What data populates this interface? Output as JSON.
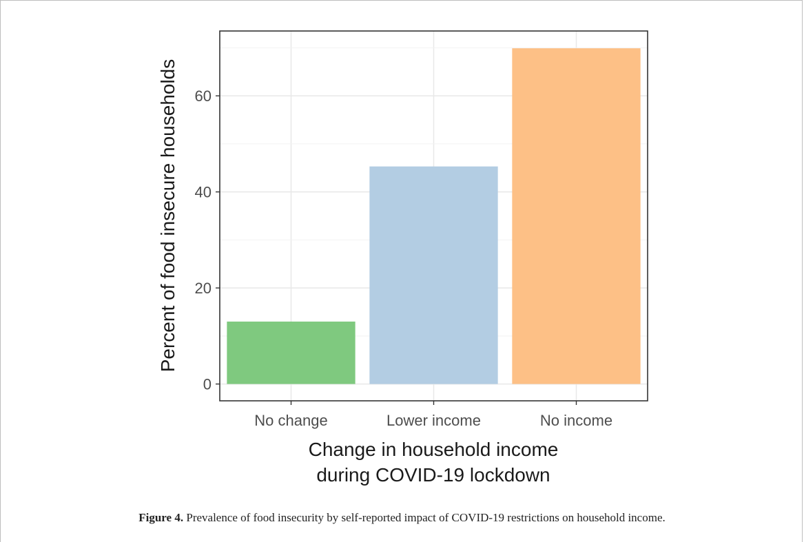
{
  "chart_data": {
    "type": "bar",
    "categories": [
      "No change",
      "Lower income",
      "No income"
    ],
    "values": [
      13,
      45.3,
      69.9
    ],
    "colors": [
      "#7fc97f",
      "#b3cde3",
      "#fdc086"
    ],
    "ylabel": "Percent of food insecure households",
    "xlabel_lines": [
      "Change in household income",
      "during COVID-19 lockdown"
    ],
    "ylim": [
      -3.5,
      73.5
    ],
    "yticks": [
      0,
      20,
      40,
      60
    ],
    "grid": true
  },
  "caption": {
    "label": "Figure 4.",
    "text": " Prevalence of food insecurity by self-reported impact of COVID-19 restrictions on household income."
  }
}
